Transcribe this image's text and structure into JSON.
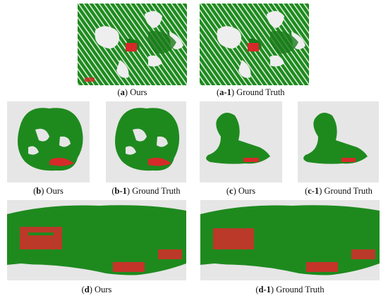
{
  "figure": {
    "panels": [
      {
        "id": "a",
        "letter": "a",
        "label": "Ours"
      },
      {
        "id": "a1",
        "letter": "a-1",
        "label": "Ground Truth"
      },
      {
        "id": "b",
        "letter": "b",
        "label": "Ours"
      },
      {
        "id": "b1",
        "letter": "b-1",
        "label": "Ground Truth"
      },
      {
        "id": "c",
        "letter": "c",
        "label": "Ours"
      },
      {
        "id": "c1",
        "letter": "c-1",
        "label": "Ground Truth"
      },
      {
        "id": "d",
        "letter": "d",
        "label": "Ours"
      },
      {
        "id": "d1",
        "letter": "d-1",
        "label": "Ground Truth"
      }
    ],
    "colors": {
      "vegetation": "#1e8a1e",
      "vegetation_dark": "#136613",
      "target": "#d62a2a",
      "background": "#e6e6e6",
      "ground": "#f2f2f2"
    }
  }
}
